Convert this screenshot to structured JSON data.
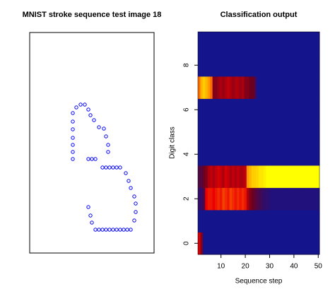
{
  "chart_data": [
    {
      "type": "scatter",
      "title": "MNIST stroke sequence test image 18",
      "color": "#0000ff",
      "xlim": [
        0,
        176
      ],
      "ylim": [
        0,
        312
      ],
      "x": [
        61,
        61,
        61,
        61,
        61,
        61,
        61,
        66,
        72,
        78,
        83,
        86,
        91,
        98,
        105,
        108,
        111,
        111,
        83,
        88,
        93,
        103,
        108,
        113,
        118,
        123,
        128,
        136,
        140,
        143,
        148,
        150,
        150,
        148,
        143,
        138,
        133,
        128,
        123,
        118,
        113,
        108,
        103,
        98,
        93,
        88,
        86,
        83
      ],
      "y": [
        133,
        143,
        153,
        163,
        175,
        186,
        198,
        206,
        210,
        210,
        203,
        195,
        188,
        178,
        176,
        165,
        153,
        143,
        133,
        133,
        133,
        121,
        121,
        121,
        121,
        121,
        121,
        113,
        102,
        92,
        80,
        70,
        58,
        46,
        33,
        33,
        33,
        33,
        33,
        33,
        33,
        33,
        33,
        33,
        33,
        43,
        53,
        65
      ]
    },
    {
      "type": "heatmap",
      "title": "Classification output",
      "xlabel": "Sequence step",
      "ylabel": "Digit class",
      "x": [
        1,
        2,
        3,
        4,
        5,
        6,
        7,
        8,
        9,
        10,
        11,
        12,
        13,
        14,
        15,
        16,
        17,
        18,
        19,
        20,
        21,
        22,
        23,
        24,
        25,
        26,
        27,
        28,
        29,
        30,
        31,
        32,
        33,
        34,
        35,
        36,
        37,
        38,
        39,
        40,
        41,
        42,
        43,
        44,
        45,
        46,
        47,
        48,
        49,
        50
      ],
      "y": [
        0,
        1,
        2,
        3,
        4,
        5,
        6,
        7,
        8,
        9
      ],
      "xlim": [
        0.5,
        50.5
      ],
      "ylim": [
        -0.5,
        9.5
      ],
      "xticks": [
        10,
        20,
        30,
        40,
        50
      ],
      "yticks": [
        0,
        2,
        4,
        6,
        8
      ],
      "z": [
        [
          0.4,
          0.2,
          0,
          0,
          0,
          0,
          0,
          0,
          0,
          0,
          0,
          0,
          0,
          0,
          0,
          0,
          0,
          0,
          0,
          0,
          0,
          0,
          0,
          0,
          0,
          0,
          0,
          0,
          0,
          0,
          0,
          0,
          0,
          0,
          0,
          0,
          0,
          0,
          0,
          0,
          0,
          0,
          0,
          0,
          0,
          0,
          0,
          0,
          0,
          0
        ],
        [
          0,
          0,
          0,
          0,
          0,
          0,
          0,
          0,
          0,
          0,
          0,
          0,
          0,
          0,
          0,
          0,
          0,
          0,
          0,
          0,
          0,
          0,
          0,
          0,
          0,
          0,
          0,
          0,
          0,
          0,
          0,
          0,
          0,
          0,
          0,
          0,
          0,
          0,
          0,
          0,
          0,
          0,
          0,
          0,
          0,
          0,
          0,
          0,
          0,
          0
        ],
        [
          0.05,
          0.05,
          0.1,
          0.45,
          0.5,
          0.5,
          0.45,
          0.5,
          0.55,
          0.5,
          0.6,
          0.55,
          0.5,
          0.6,
          0.55,
          0.5,
          0.55,
          0.5,
          0.55,
          0.5,
          0.3,
          0.2,
          0.15,
          0.12,
          0.1,
          0.08,
          0.06,
          0.05,
          0.04,
          0.03,
          0.02,
          0.02,
          0.02,
          0.02,
          0.02,
          0.02,
          0.02,
          0.02,
          0.02,
          0.02,
          0.02,
          0.02,
          0.02,
          0.02,
          0.02,
          0.02,
          0.02,
          0.02,
          0.02,
          0.02
        ],
        [
          0.1,
          0.1,
          0.15,
          0.2,
          0.3,
          0.35,
          0.3,
          0.35,
          0.4,
          0.35,
          0.3,
          0.4,
          0.35,
          0.3,
          0.35,
          0.3,
          0.35,
          0.3,
          0.3,
          0.35,
          0.8,
          0.85,
          0.9,
          0.9,
          0.92,
          0.95,
          0.95,
          0.97,
          1,
          1,
          1,
          1,
          1,
          1,
          1,
          1,
          1,
          1,
          1,
          1,
          1,
          1,
          1,
          1,
          1,
          1,
          1,
          1,
          1,
          1
        ],
        [
          0,
          0,
          0,
          0,
          0,
          0,
          0,
          0,
          0,
          0,
          0,
          0,
          0,
          0,
          0,
          0,
          0,
          0,
          0,
          0,
          0,
          0,
          0,
          0,
          0,
          0,
          0,
          0,
          0,
          0,
          0,
          0,
          0,
          0,
          0,
          0,
          0,
          0,
          0,
          0,
          0,
          0,
          0,
          0,
          0,
          0,
          0,
          0,
          0,
          0
        ],
        [
          0,
          0,
          0,
          0,
          0,
          0,
          0,
          0,
          0,
          0,
          0,
          0,
          0,
          0,
          0,
          0,
          0,
          0,
          0,
          0,
          0,
          0,
          0,
          0,
          0,
          0,
          0,
          0,
          0,
          0,
          0,
          0,
          0,
          0,
          0,
          0,
          0,
          0,
          0,
          0,
          0,
          0,
          0,
          0,
          0,
          0,
          0,
          0,
          0,
          0
        ],
        [
          0,
          0,
          0,
          0,
          0,
          0,
          0,
          0,
          0,
          0,
          0,
          0,
          0,
          0,
          0,
          0,
          0,
          0,
          0,
          0,
          0,
          0,
          0,
          0,
          0,
          0,
          0,
          0,
          0,
          0,
          0,
          0,
          0,
          0,
          0,
          0,
          0,
          0,
          0,
          0,
          0,
          0,
          0,
          0,
          0,
          0,
          0,
          0,
          0,
          0
        ],
        [
          0.7,
          0.85,
          0.9,
          0.85,
          0.8,
          0.7,
          0.2,
          0.2,
          0.25,
          0.3,
          0.25,
          0.3,
          0.35,
          0.3,
          0.25,
          0.3,
          0.3,
          0.25,
          0.3,
          0.2,
          0.2,
          0.15,
          0.15,
          0.1,
          0,
          0,
          0,
          0,
          0,
          0,
          0,
          0,
          0,
          0,
          0,
          0,
          0,
          0,
          0,
          0,
          0,
          0,
          0,
          0,
          0,
          0,
          0,
          0,
          0,
          0
        ],
        [
          0,
          0,
          0,
          0,
          0,
          0,
          0,
          0,
          0,
          0,
          0,
          0,
          0,
          0,
          0,
          0,
          0,
          0,
          0,
          0,
          0,
          0,
          0,
          0,
          0,
          0,
          0,
          0,
          0,
          0,
          0,
          0,
          0,
          0,
          0,
          0,
          0,
          0,
          0,
          0,
          0,
          0,
          0,
          0,
          0,
          0,
          0,
          0,
          0,
          0
        ],
        [
          0,
          0,
          0,
          0,
          0,
          0,
          0,
          0,
          0,
          0,
          0,
          0,
          0,
          0,
          0,
          0,
          0,
          0,
          0,
          0,
          0,
          0,
          0,
          0,
          0,
          0,
          0,
          0,
          0,
          0,
          0,
          0,
          0,
          0,
          0,
          0,
          0,
          0,
          0,
          0,
          0,
          0,
          0,
          0,
          0,
          0,
          0,
          0,
          0,
          0
        ]
      ]
    }
  ]
}
